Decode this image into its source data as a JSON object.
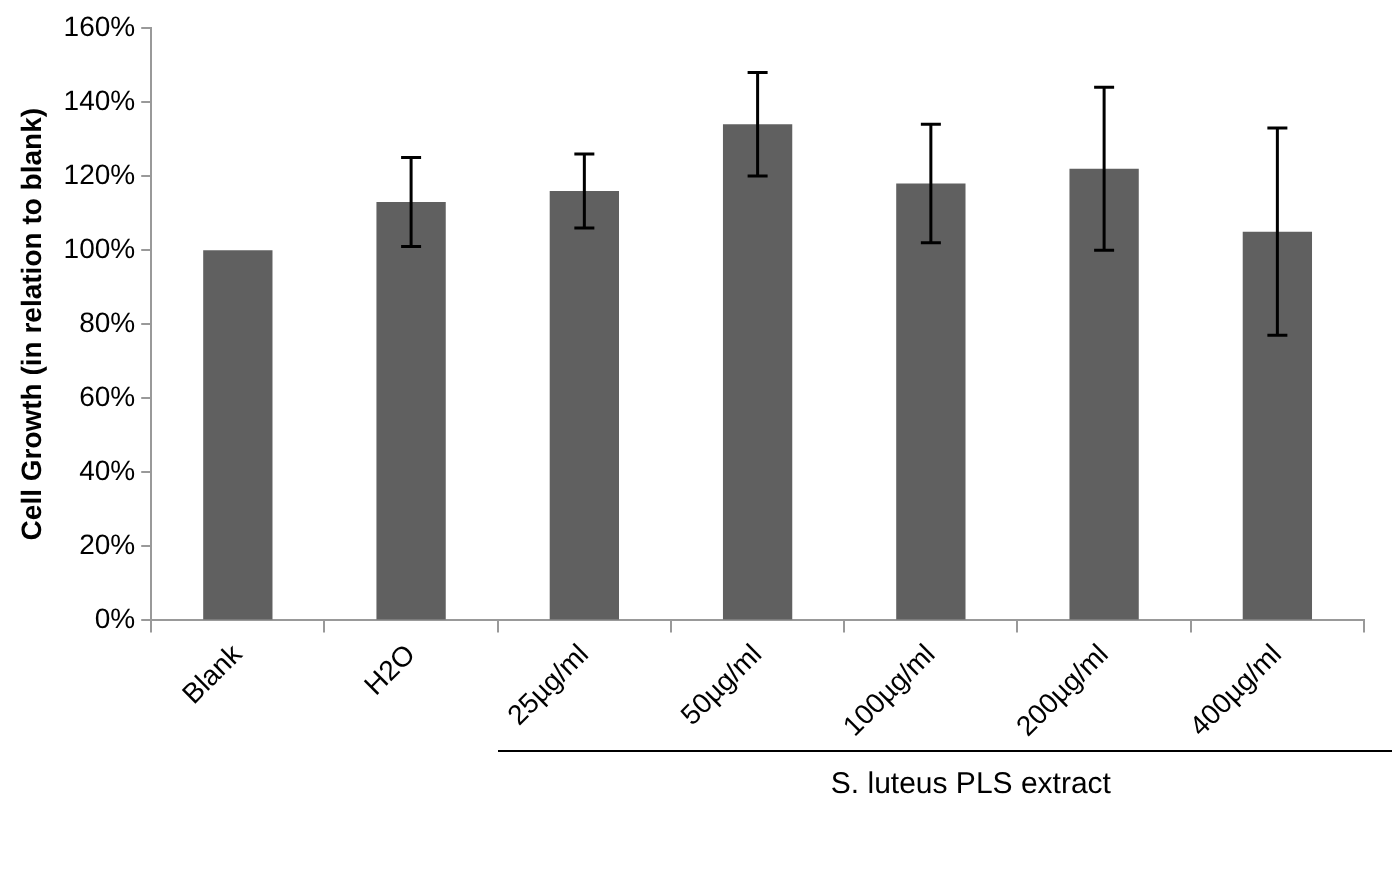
{
  "chart_data": {
    "type": "bar",
    "ylabel": "Cell Growth (in relation to blank)",
    "categories": [
      "Blank",
      "H2O",
      "25µg/ml",
      "50µg/ml",
      "100µg/ml",
      "200µg/ml",
      "400µg/ml"
    ],
    "values": [
      100,
      113,
      116,
      134,
      118,
      122,
      105
    ],
    "errors": [
      null,
      12,
      10,
      14,
      16,
      22,
      28
    ],
    "color": "#606060",
    "ylim": [
      0,
      160
    ],
    "yticks": [
      {
        "value": 0,
        "label": "0%"
      },
      {
        "value": 20,
        "label": "20%"
      },
      {
        "value": 40,
        "label": "40%"
      },
      {
        "value": 60,
        "label": "60%"
      },
      {
        "value": 80,
        "label": "80%"
      },
      {
        "value": 100,
        "label": "100%"
      },
      {
        "value": 120,
        "label": "120%"
      },
      {
        "value": 140,
        "label": "140%"
      },
      {
        "value": 160,
        "label": "160%"
      }
    ],
    "annotations": [
      "S. luteus PLS extract"
    ]
  }
}
